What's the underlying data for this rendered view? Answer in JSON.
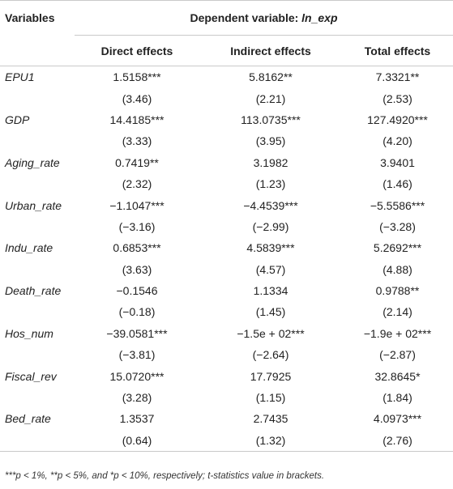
{
  "table": {
    "header": {
      "variables_label": "Variables",
      "dependent_label": "Dependent variable: ",
      "dependent_var": "ln_exp",
      "columns": [
        "Direct effects",
        "Indirect effects",
        "Total effects"
      ]
    },
    "rows": [
      {
        "name": "EPU1",
        "coef": [
          "1.5158***",
          "5.8162**",
          "7.3321**"
        ],
        "t": [
          "(3.46)",
          "(2.21)",
          "(2.53)"
        ]
      },
      {
        "name": "GDP",
        "coef": [
          "14.4185***",
          "113.0735***",
          "127.4920***"
        ],
        "t": [
          "(3.33)",
          "(3.95)",
          "(4.20)"
        ]
      },
      {
        "name": "Aging_rate",
        "coef": [
          "0.7419**",
          "3.1982",
          "3.9401"
        ],
        "t": [
          "(2.32)",
          "(1.23)",
          "(1.46)"
        ]
      },
      {
        "name": "Urban_rate",
        "coef": [
          "−1.1047***",
          "−4.4539***",
          "−5.5586***"
        ],
        "t": [
          "(−3.16)",
          "(−2.99)",
          "(−3.28)"
        ]
      },
      {
        "name": "Indu_rate",
        "coef": [
          "0.6853***",
          "4.5839***",
          "5.2692***"
        ],
        "t": [
          "(3.63)",
          "(4.57)",
          "(4.88)"
        ]
      },
      {
        "name": "Death_rate",
        "coef": [
          "−0.1546",
          "1.1334",
          "0.9788**"
        ],
        "t": [
          "(−0.18)",
          "(1.45)",
          "(2.14)"
        ]
      },
      {
        "name": "Hos_num",
        "coef": [
          "−39.0581***",
          "−1.5e + 02***",
          "−1.9e + 02***"
        ],
        "t": [
          "(−3.81)",
          "(−2.64)",
          "(−2.87)"
        ]
      },
      {
        "name": "Fiscal_rev",
        "coef": [
          "15.0720***",
          "17.7925",
          "32.8645*"
        ],
        "t": [
          "(3.28)",
          "(1.15)",
          "(1.84)"
        ]
      },
      {
        "name": "Bed_rate",
        "coef": [
          "1.3537",
          "2.7435",
          "4.0973***"
        ],
        "t": [
          "(0.64)",
          "(1.32)",
          "(2.76)"
        ]
      }
    ]
  },
  "notes": "***p < 1%, **p < 5%, and *p < 10%, respectively; t-statistics value in brackets."
}
